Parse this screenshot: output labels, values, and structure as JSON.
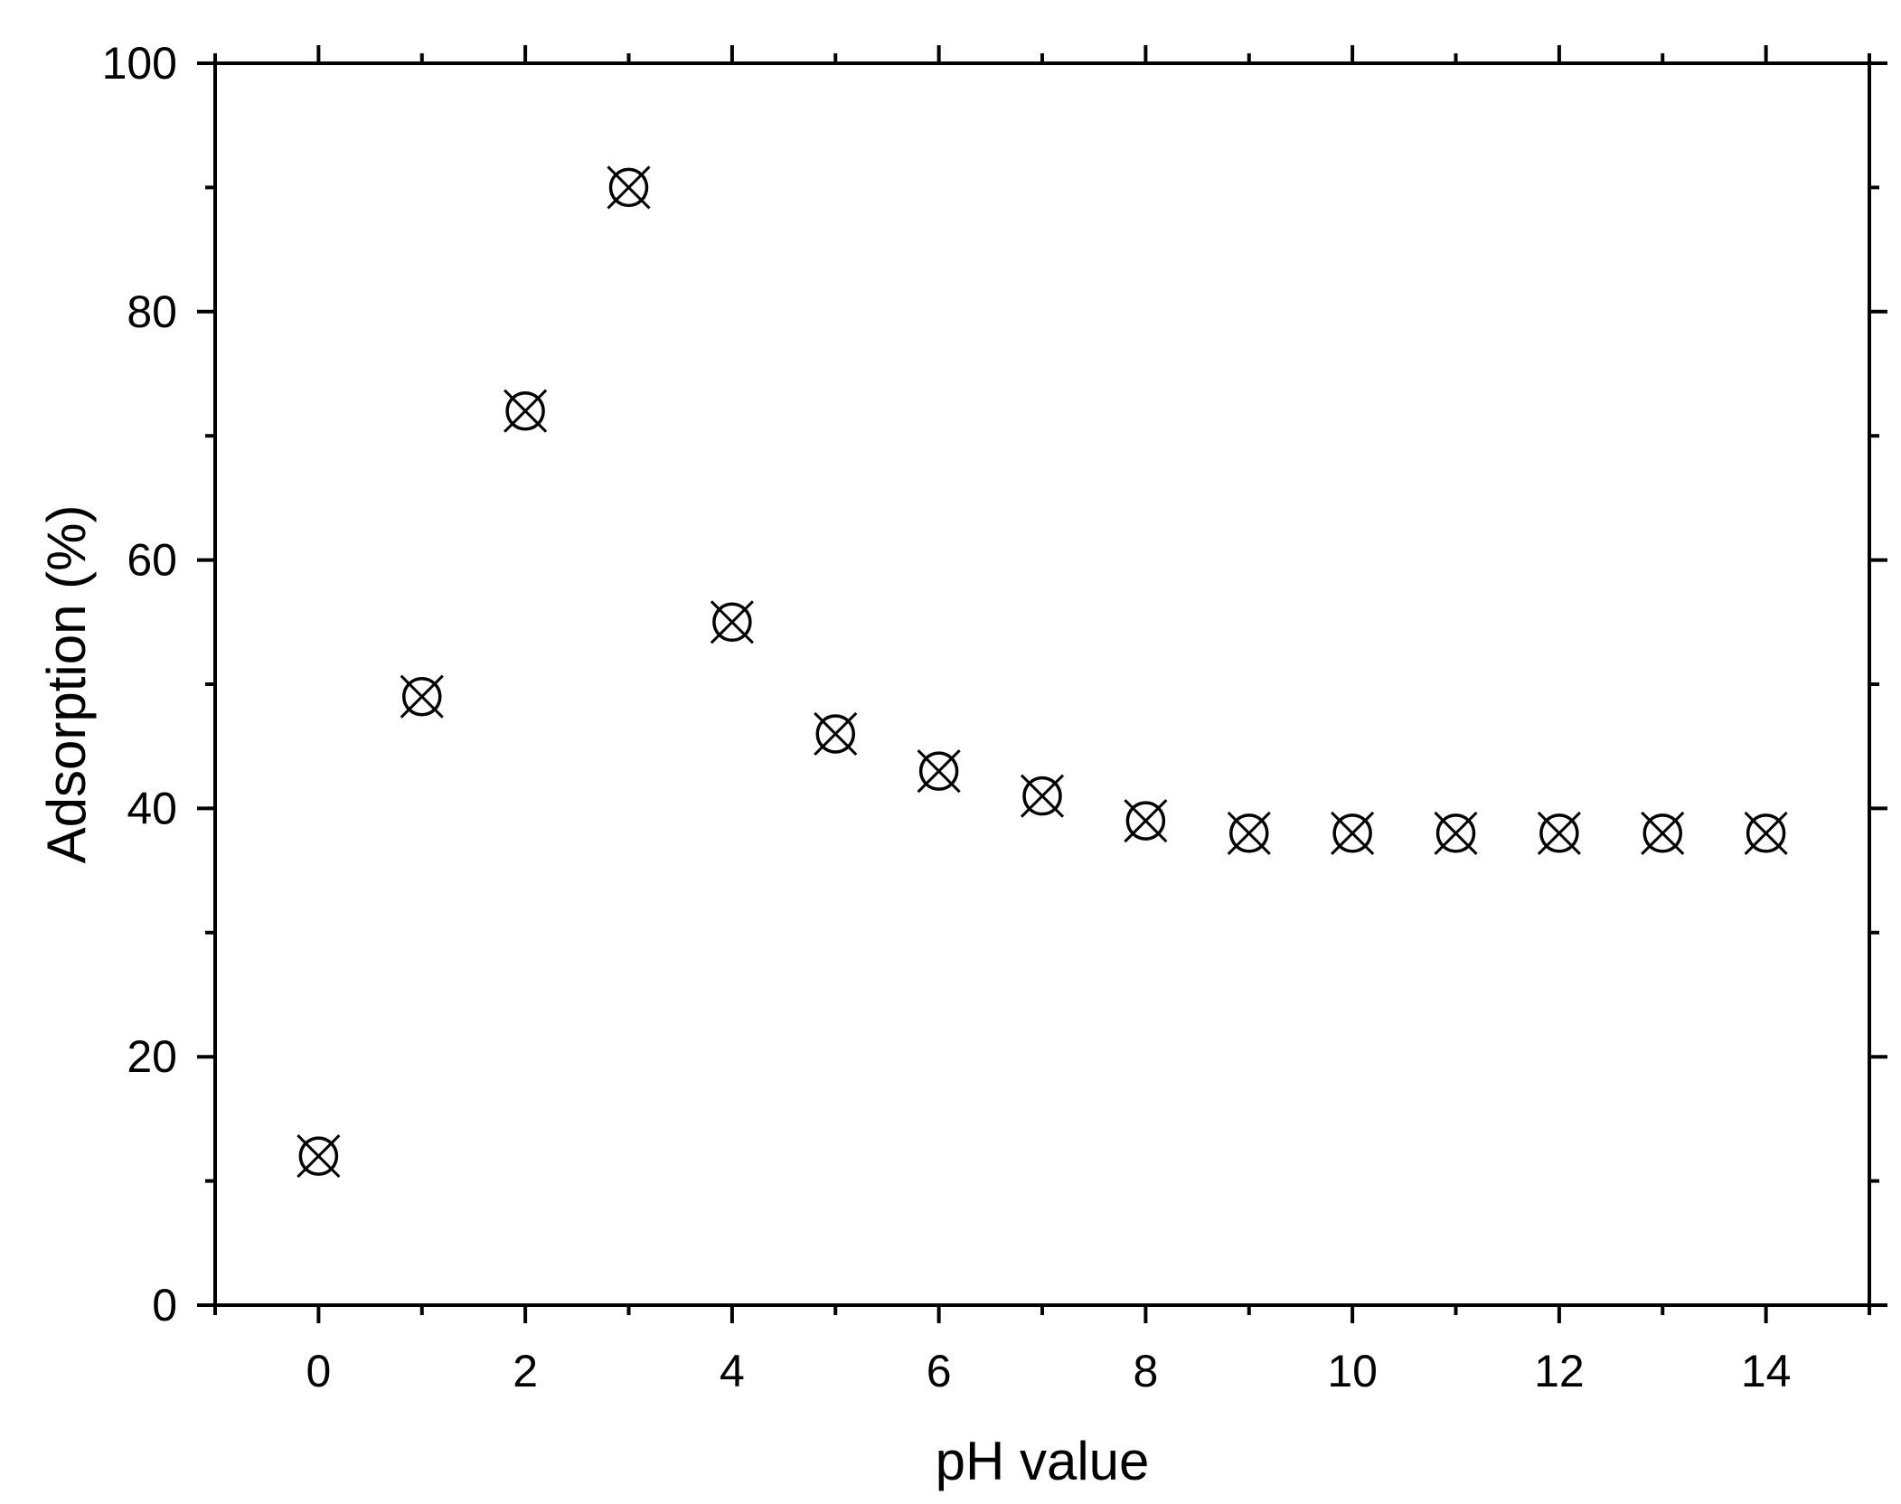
{
  "chart_data": {
    "type": "scatter",
    "title": "",
    "xlabel": "pH value",
    "ylabel": "Adsorption (%)",
    "xlim": [
      -1,
      15
    ],
    "ylim": [
      0,
      100
    ],
    "x_ticks": [
      0,
      2,
      4,
      6,
      8,
      10,
      12,
      14
    ],
    "x_tick_labels": [
      "0",
      "2",
      "4",
      "6",
      "8",
      "10",
      "12",
      "14"
    ],
    "x_minor_ticks": [
      -1,
      1,
      3,
      5,
      7,
      9,
      11,
      13,
      15
    ],
    "y_ticks": [
      0,
      20,
      40,
      60,
      80,
      100
    ],
    "y_tick_labels": [
      "0",
      "20",
      "40",
      "60",
      "80",
      "100"
    ],
    "y_minor_ticks": [
      10,
      30,
      50,
      70,
      90
    ],
    "grid": false,
    "legend": "none",
    "marker": "circle-with-cross-icon",
    "colors": {
      "axis": "#000000",
      "marker": "#000000",
      "background": "#ffffff"
    },
    "series": [
      {
        "x": [
          0,
          1,
          2,
          3,
          4,
          5,
          6,
          7,
          8,
          9,
          10,
          11,
          12,
          13,
          14
        ],
        "y": [
          12,
          49,
          72,
          90,
          55,
          46,
          43,
          41,
          39,
          38,
          38,
          38,
          38,
          38,
          38
        ]
      }
    ]
  }
}
